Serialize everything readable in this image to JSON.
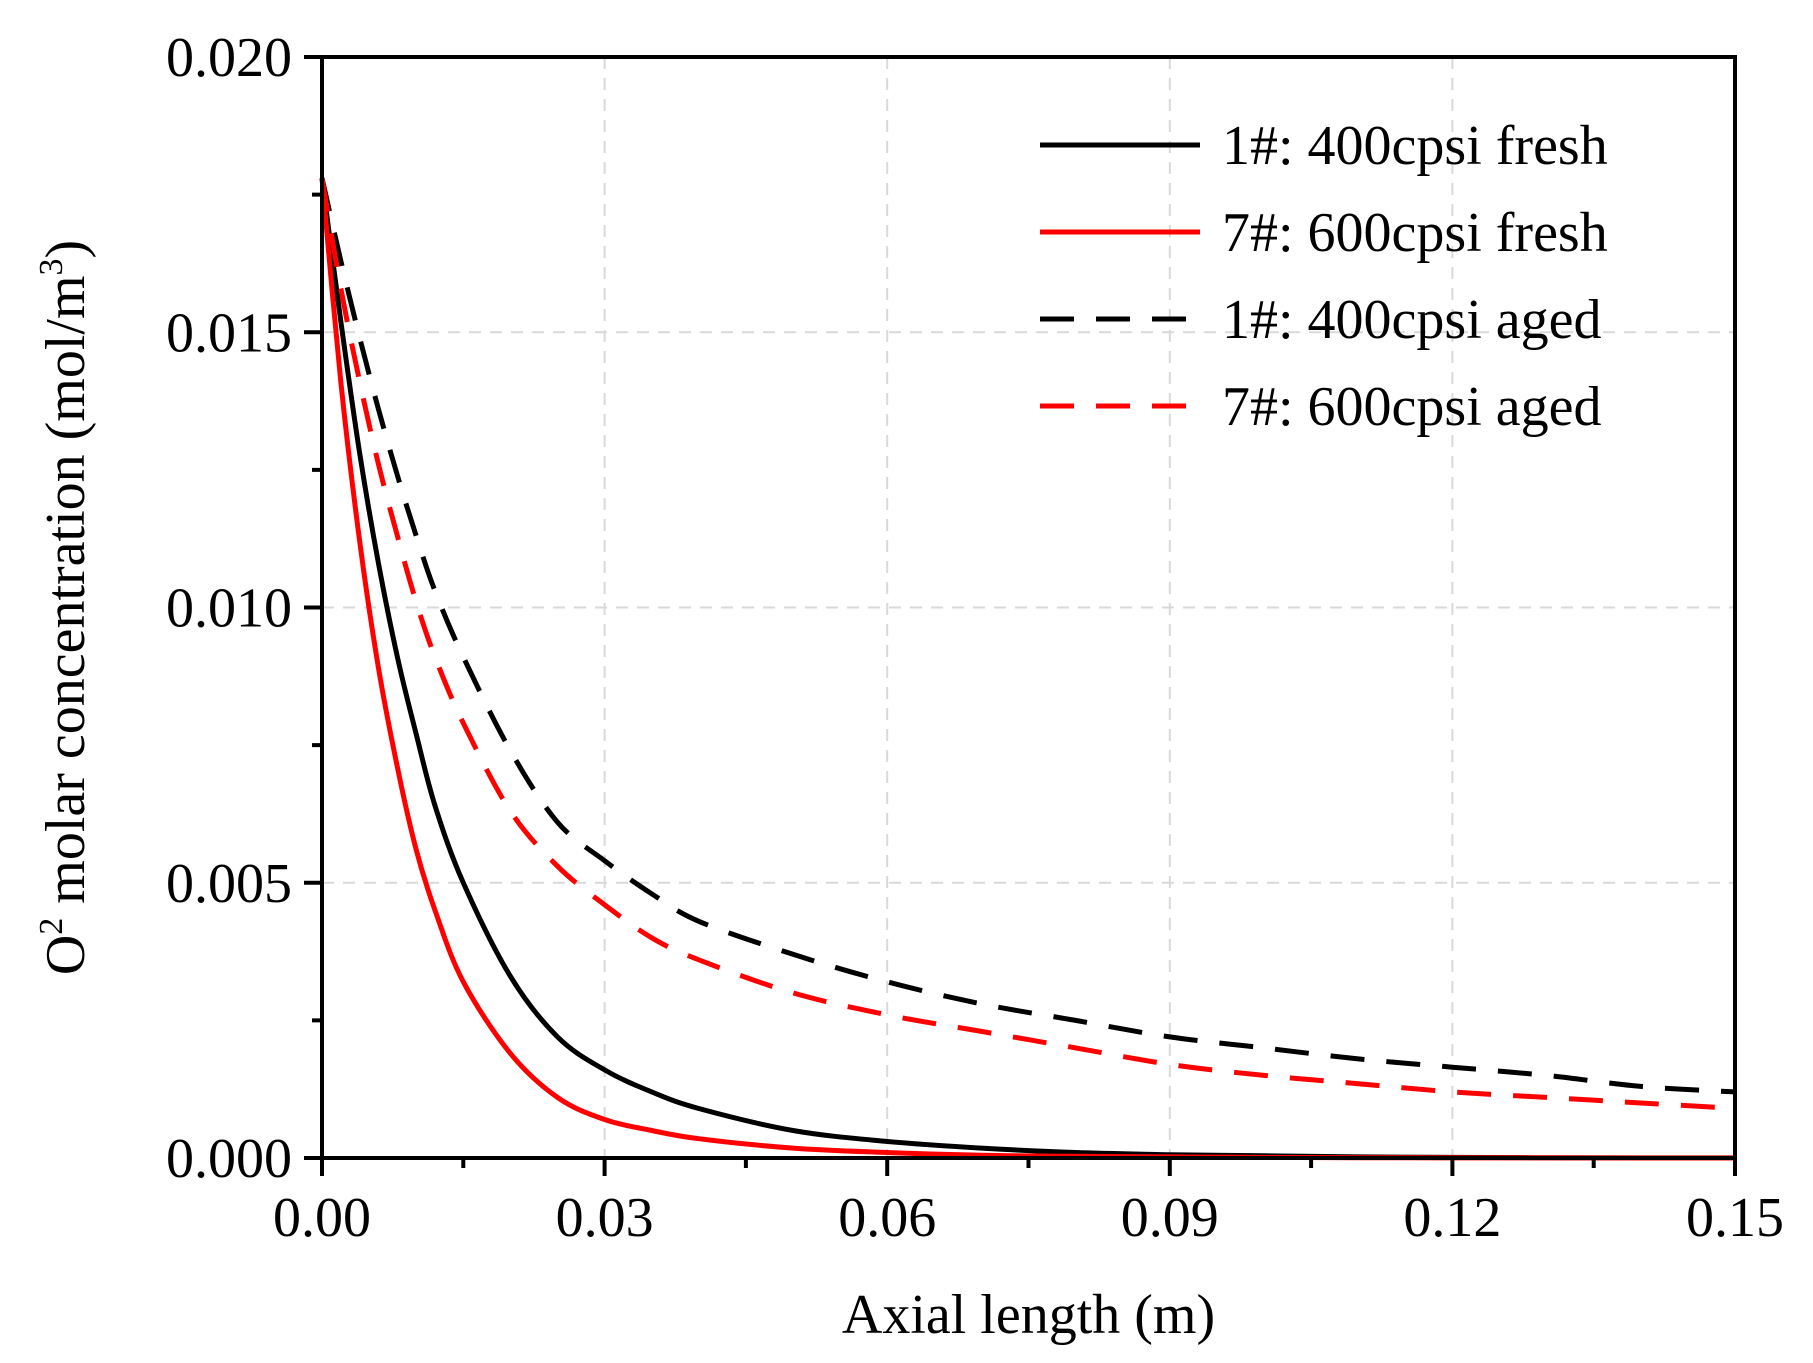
{
  "chart_data": {
    "type": "line",
    "title": "",
    "xlabel": "Axial length (m)",
    "ylabel": {
      "base": "O",
      "sup": "2",
      "text": " molar concentration  (mol/m",
      "unit_sup": "3",
      "close": ")"
    },
    "xlim": [
      0,
      0.15
    ],
    "ylim": [
      0,
      0.02
    ],
    "xticks": [
      "0.00",
      "0.03",
      "0.06",
      "0.09",
      "0.12",
      "0.15"
    ],
    "yticks": [
      "0.000",
      "0.005",
      "0.010",
      "0.015",
      "0.020"
    ],
    "grid": true,
    "legend_position": "top-right",
    "x": [
      0,
      0.002,
      0.004,
      0.006,
      0.008,
      0.01,
      0.012,
      0.015,
      0.02,
      0.025,
      0.03,
      0.035,
      0.04,
      0.05,
      0.06,
      0.07,
      0.08,
      0.09,
      0.1,
      0.11,
      0.12,
      0.13,
      0.14,
      0.15
    ],
    "series": [
      {
        "name": "1#: 400cpsi fresh",
        "color": "#000000",
        "style": "solid",
        "values": [
          0.0178,
          0.0152,
          0.0128,
          0.0108,
          0.0091,
          0.0077,
          0.0064,
          0.005,
          0.0033,
          0.0022,
          0.0016,
          0.0012,
          0.0009,
          0.0005,
          0.0003,
          0.00018,
          0.0001,
          6e-05,
          4e-05,
          2e-05,
          1e-05,
          5e-06,
          2e-06,
          1e-06
        ]
      },
      {
        "name": "7#: 600cpsi fresh",
        "color": "#ff0000",
        "style": "solid",
        "values": [
          0.0178,
          0.0141,
          0.0112,
          0.0089,
          0.0071,
          0.0056,
          0.0045,
          0.0032,
          0.0019,
          0.0011,
          0.0007,
          0.0005,
          0.00035,
          0.00018,
          0.0001,
          5e-05,
          3e-05,
          2e-05,
          1e-05,
          5e-06,
          2e-06,
          1e-06,
          5e-07,
          2e-07
        ]
      },
      {
        "name": "1#: 400cpsi aged",
        "color": "#000000",
        "style": "dashed",
        "values": [
          0.0178,
          0.0163,
          0.0149,
          0.0136,
          0.0124,
          0.0113,
          0.0103,
          0.0091,
          0.0074,
          0.0061,
          0.0054,
          0.0048,
          0.0043,
          0.0037,
          0.0032,
          0.0028,
          0.0025,
          0.0022,
          0.002,
          0.0018,
          0.00165,
          0.0015,
          0.0013,
          0.0012
        ]
      },
      {
        "name": "7#: 600cpsi aged",
        "color": "#ff0000",
        "style": "dashed",
        "values": [
          0.0178,
          0.0158,
          0.0141,
          0.0126,
          0.0113,
          0.0101,
          0.0091,
          0.0079,
          0.0063,
          0.0053,
          0.0046,
          0.004,
          0.0036,
          0.003,
          0.0026,
          0.0023,
          0.002,
          0.0017,
          0.0015,
          0.00135,
          0.0012,
          0.0011,
          0.001,
          0.0009
        ]
      }
    ]
  }
}
